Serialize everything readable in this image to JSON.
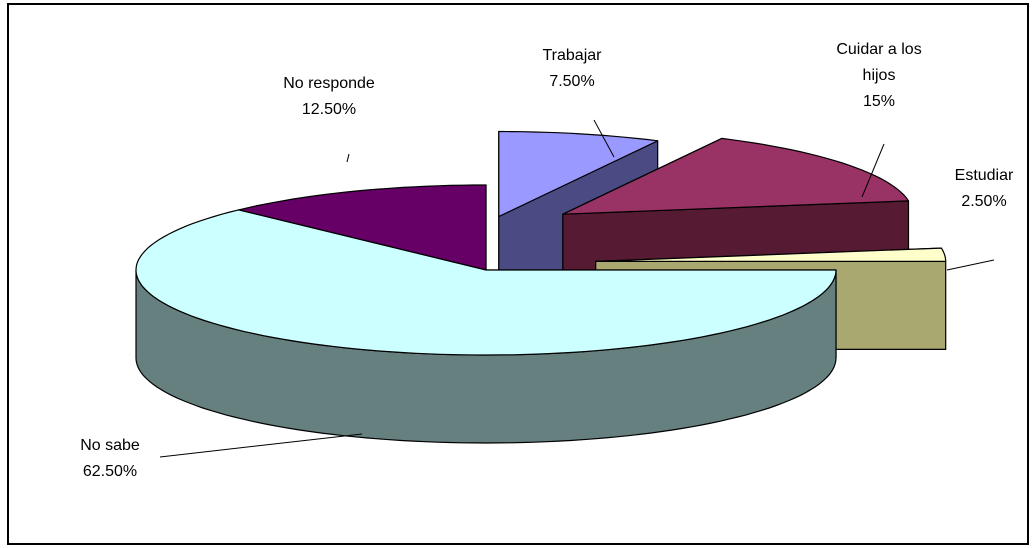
{
  "chart_data": {
    "type": "pie",
    "style": "3d-exploded",
    "title": "",
    "slices": [
      {
        "label": "Trabajar",
        "value": 7.5,
        "display": "7.50%",
        "top": "#9999ff",
        "side": "#4b4b84"
      },
      {
        "label": "Cuidar a los hijos",
        "label_lines": [
          "Cuidar a los",
          "hijos"
        ],
        "value": 15,
        "display": "15%",
        "top": "#993366",
        "side": "#561b33"
      },
      {
        "label": "Estudiar",
        "value": 2.5,
        "display": "2.50%",
        "top": "#ffffcc",
        "side": "#a8a870"
      },
      {
        "label": "No sabe",
        "value": 62.5,
        "display": "62.50%",
        "top": "#ccffff",
        "side": "#668080"
      },
      {
        "label": "No responde",
        "value": 12.5,
        "display": "12.50%",
        "top": "#660066",
        "side": "#33002f"
      }
    ],
    "legend": "none",
    "data_labels": "outside-with-leader-lines"
  }
}
